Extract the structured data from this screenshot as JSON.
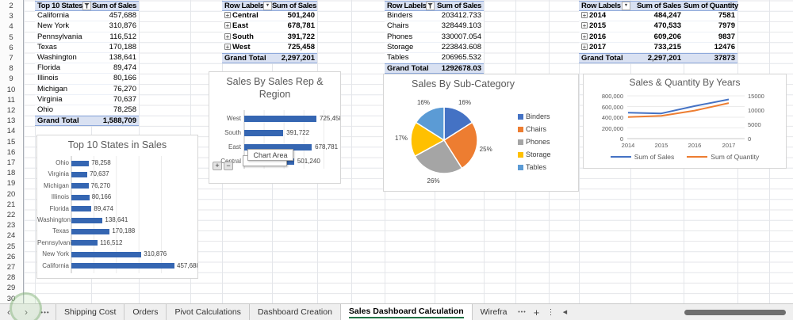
{
  "sheet": {
    "row_start": 2,
    "row_end": 30
  },
  "icons": {
    "expand": "+",
    "dropdown": "▼"
  },
  "colors": {
    "accent_blue": "#4472C4",
    "accent_orange": "#ED7D31",
    "accent_gray": "#A5A5A5",
    "accent_gold": "#FFC000",
    "accent_lightblue": "#5B9BD5",
    "pivot_header_bg": "#D9E1F2",
    "pivot_border_blue": "#8EA9DB",
    "active_tab_underline": "#217346"
  },
  "pivot_state_sales": {
    "headers": [
      "Top 10 States",
      "Sum of Sales"
    ],
    "rows": [
      [
        "California",
        "457,688"
      ],
      [
        "New York",
        "310,876"
      ],
      [
        "Pennsylvania",
        "116,512"
      ],
      [
        "Texas",
        "170,188"
      ],
      [
        "Washington",
        "138,641"
      ],
      [
        "Florida",
        "89,474"
      ],
      [
        "Illinois",
        "80,166"
      ],
      [
        "Michigan",
        "76,270"
      ],
      [
        "Virginia",
        "70,637"
      ],
      [
        "Ohio",
        "78,258"
      ]
    ],
    "grand_total": [
      "Grand Total",
      "1,588,709"
    ]
  },
  "pivot_region": {
    "headers": [
      "Row Labels",
      "Sum of Sales"
    ],
    "rows": [
      [
        "Central",
        "501,240"
      ],
      [
        "East",
        "678,781"
      ],
      [
        "South",
        "391,722"
      ],
      [
        "West",
        "725,458"
      ]
    ],
    "grand_total": [
      "Grand Total",
      "2,297,201"
    ]
  },
  "pivot_subcategory": {
    "headers": [
      "Row Labels",
      "Sum of Sales"
    ],
    "rows": [
      [
        "Binders",
        "203412.733"
      ],
      [
        "Chairs",
        "328449.103"
      ],
      [
        "Phones",
        "330007.054"
      ],
      [
        "Storage",
        "223843.608"
      ],
      [
        "Tables",
        "206965.532"
      ]
    ],
    "grand_total": [
      "Grand Total",
      "1292678.03"
    ]
  },
  "pivot_years": {
    "headers": [
      "Row Labels",
      "Sum of Sales",
      "Sum of Quantity"
    ],
    "rows": [
      [
        "2014",
        "484,247",
        "7581"
      ],
      [
        "2015",
        "470,533",
        "7979"
      ],
      [
        "2016",
        "609,206",
        "9837"
      ],
      [
        "2017",
        "733,215",
        "12476"
      ]
    ],
    "grand_total": [
      "Grand Total",
      "2,297,201",
      "37873"
    ]
  },
  "chart_data": [
    {
      "type": "bar",
      "orientation": "horizontal",
      "title": "Top 10 States in Sales",
      "categories": [
        "Ohio",
        "Virginia",
        "Michigan",
        "Illinois",
        "Florida",
        "Washington",
        "Texas",
        "Pennsylvania",
        "New York",
        "California"
      ],
      "values": [
        78258,
        70637,
        76270,
        80166,
        89474,
        138641,
        170188,
        116512,
        310876,
        457688
      ],
      "value_labels": [
        "78,258",
        "70,637",
        "76,270",
        "80,166",
        "89,474",
        "138,641",
        "170,188",
        "116,512",
        "310,876",
        "457,688"
      ],
      "color": "#3566B2",
      "xlim": [
        0,
        500000
      ],
      "grid": true,
      "legend_position": "none"
    },
    {
      "type": "bar",
      "orientation": "horizontal",
      "title": "Sales By Sales Rep & Region",
      "title_lines": [
        "Sales By Sales Rep &",
        "Region"
      ],
      "categories": [
        "West",
        "South",
        "East",
        "Central"
      ],
      "values": [
        725458,
        391722,
        678781,
        501240
      ],
      "value_labels": [
        "725,458",
        "391,722",
        "678,781",
        "501,240"
      ],
      "color": "#3566B2",
      "xlim": [
        0,
        800000
      ],
      "grid": true,
      "legend_position": "none",
      "tooltip": "Chart Area",
      "buttons": [
        "+",
        "−"
      ]
    },
    {
      "type": "pie",
      "title": "Sales By Sub-Category",
      "labels": [
        "Binders",
        "Chairs",
        "Phones",
        "Storage",
        "Tables"
      ],
      "values_pct": [
        16,
        25,
        26,
        17,
        16
      ],
      "pct_labels": [
        "16%",
        "25%",
        "26%",
        "17%",
        "16%"
      ],
      "colors": [
        "#4472C4",
        "#ED7D31",
        "#A5A5A5",
        "#FFC000",
        "#5B9BD5"
      ],
      "legend_position": "right"
    },
    {
      "type": "line",
      "title": "Sales & Quantity By Years",
      "x": [
        "2014",
        "2015",
        "2016",
        "2017"
      ],
      "series": [
        {
          "name": "Sum of Sales",
          "axis": "left",
          "color": "#4472C4",
          "values": [
            484247,
            470533,
            609206,
            733215
          ]
        },
        {
          "name": "Sum of Quantity",
          "axis": "right",
          "color": "#ED7D31",
          "values": [
            7581,
            7979,
            9837,
            12476
          ]
        }
      ],
      "left_axis": {
        "min": 0,
        "max": 800000,
        "tick_labels": [
          "0",
          "200,000",
          "400,000",
          "600,000",
          "800,000"
        ]
      },
      "right_axis": {
        "min": 0,
        "max": 15000,
        "tick_labels": [
          "0",
          "5000",
          "10000",
          "15000"
        ]
      },
      "grid": true,
      "legend_position": "bottom"
    }
  ],
  "tabbar": {
    "nav_prev": "‹",
    "nav_next": "›",
    "nav_more": "•••",
    "tabs": [
      "Shipping Cost",
      "Orders",
      "Pivot Calculations",
      "Dashboard Creation",
      "Sales Dashboard Calculation",
      "Wirefra"
    ],
    "active_tab": "Sales Dashboard Calculation",
    "overflow_dots": "•••",
    "add_sheet": "+",
    "menu": "⋮",
    "scroll_left": "◀"
  }
}
